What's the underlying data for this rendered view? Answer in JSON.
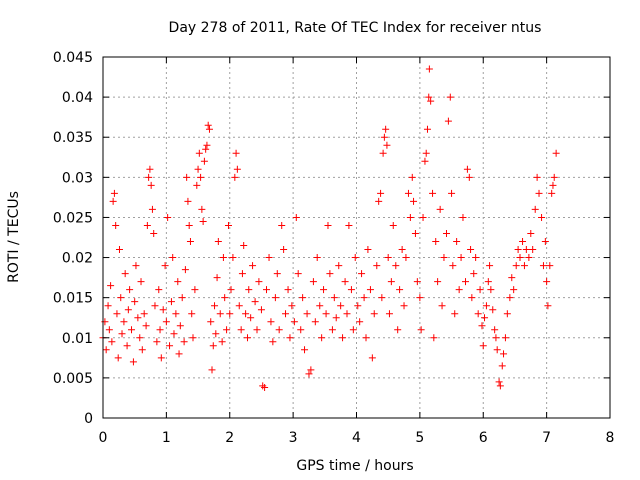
{
  "chart_data": {
    "type": "scatter",
    "title": "Day 278 of 2011, Rate Of TEC Index for receiver ntus",
    "xlabel": "GPS time / hours",
    "ylabel": "ROTI / TECUs",
    "xlim": [
      0,
      8
    ],
    "ylim": [
      0,
      0.045
    ],
    "xticks": [
      "0",
      "1",
      "2",
      "3",
      "4",
      "5",
      "6",
      "7",
      "8"
    ],
    "yticks": [
      "0",
      "0.005",
      "0.01",
      "0.015",
      "0.02",
      "0.025",
      "0.03",
      "0.035",
      "0.04",
      "0.045"
    ],
    "grid": true,
    "marker": "+",
    "color": "#ff0000",
    "series": [
      {
        "name": "ROTI",
        "points": [
          [
            0.0,
            0.01
          ],
          [
            0.03,
            0.012
          ],
          [
            0.05,
            0.0085
          ],
          [
            0.08,
            0.014
          ],
          [
            0.1,
            0.011
          ],
          [
            0.12,
            0.0165
          ],
          [
            0.14,
            0.0095
          ],
          [
            0.16,
            0.027
          ],
          [
            0.18,
            0.028
          ],
          [
            0.2,
            0.024
          ],
          [
            0.22,
            0.013
          ],
          [
            0.24,
            0.0075
          ],
          [
            0.26,
            0.021
          ],
          [
            0.28,
            0.015
          ],
          [
            0.3,
            0.0105
          ],
          [
            0.33,
            0.012
          ],
          [
            0.35,
            0.018
          ],
          [
            0.38,
            0.009
          ],
          [
            0.4,
            0.0135
          ],
          [
            0.42,
            0.016
          ],
          [
            0.45,
            0.011
          ],
          [
            0.48,
            0.007
          ],
          [
            0.5,
            0.0145
          ],
          [
            0.52,
            0.019
          ],
          [
            0.55,
            0.0125
          ],
          [
            0.58,
            0.01
          ],
          [
            0.6,
            0.017
          ],
          [
            0.62,
            0.0085
          ],
          [
            0.65,
            0.013
          ],
          [
            0.68,
            0.0115
          ],
          [
            0.7,
            0.024
          ],
          [
            0.72,
            0.03
          ],
          [
            0.74,
            0.031
          ],
          [
            0.76,
            0.029
          ],
          [
            0.78,
            0.026
          ],
          [
            0.8,
            0.023
          ],
          [
            0.82,
            0.014
          ],
          [
            0.85,
            0.0095
          ],
          [
            0.88,
            0.016
          ],
          [
            0.9,
            0.011
          ],
          [
            0.92,
            0.0075
          ],
          [
            0.95,
            0.0135
          ],
          [
            0.98,
            0.019
          ],
          [
            1.0,
            0.012
          ],
          [
            1.02,
            0.025
          ],
          [
            1.05,
            0.009
          ],
          [
            1.08,
            0.0145
          ],
          [
            1.1,
            0.02
          ],
          [
            1.12,
            0.0105
          ],
          [
            1.15,
            0.013
          ],
          [
            1.18,
            0.017
          ],
          [
            1.2,
            0.008
          ],
          [
            1.22,
            0.0115
          ],
          [
            1.25,
            0.015
          ],
          [
            1.28,
            0.0095
          ],
          [
            1.3,
            0.0185
          ],
          [
            1.32,
            0.03
          ],
          [
            1.34,
            0.027
          ],
          [
            1.36,
            0.024
          ],
          [
            1.38,
            0.022
          ],
          [
            1.4,
            0.013
          ],
          [
            1.42,
            0.01
          ],
          [
            1.45,
            0.016
          ],
          [
            1.48,
            0.029
          ],
          [
            1.5,
            0.031
          ],
          [
            1.52,
            0.033
          ],
          [
            1.54,
            0.03
          ],
          [
            1.56,
            0.026
          ],
          [
            1.58,
            0.0245
          ],
          [
            1.6,
            0.032
          ],
          [
            1.62,
            0.0335
          ],
          [
            1.64,
            0.034
          ],
          [
            1.66,
            0.0365
          ],
          [
            1.68,
            0.036
          ],
          [
            1.7,
            0.012
          ],
          [
            1.72,
            0.006
          ],
          [
            1.74,
            0.009
          ],
          [
            1.76,
            0.014
          ],
          [
            1.78,
            0.0105
          ],
          [
            1.8,
            0.0175
          ],
          [
            1.82,
            0.022
          ],
          [
            1.85,
            0.013
          ],
          [
            1.88,
            0.0095
          ],
          [
            1.9,
            0.02
          ],
          [
            1.92,
            0.015
          ],
          [
            1.95,
            0.011
          ],
          [
            1.98,
            0.024
          ],
          [
            2.0,
            0.013
          ],
          [
            2.02,
            0.016
          ],
          [
            2.05,
            0.02
          ],
          [
            2.08,
            0.03
          ],
          [
            2.1,
            0.033
          ],
          [
            2.12,
            0.031
          ],
          [
            2.15,
            0.014
          ],
          [
            2.18,
            0.011
          ],
          [
            2.2,
            0.018
          ],
          [
            2.22,
            0.0215
          ],
          [
            2.25,
            0.013
          ],
          [
            2.28,
            0.01
          ],
          [
            2.3,
            0.016
          ],
          [
            2.33,
            0.0125
          ],
          [
            2.36,
            0.019
          ],
          [
            2.4,
            0.0145
          ],
          [
            2.43,
            0.011
          ],
          [
            2.46,
            0.017
          ],
          [
            2.5,
            0.0135
          ],
          [
            2.52,
            0.004
          ],
          [
            2.55,
            0.0038
          ],
          [
            2.58,
            0.016
          ],
          [
            2.62,
            0.02
          ],
          [
            2.65,
            0.012
          ],
          [
            2.68,
            0.0095
          ],
          [
            2.72,
            0.015
          ],
          [
            2.75,
            0.018
          ],
          [
            2.78,
            0.011
          ],
          [
            2.82,
            0.024
          ],
          [
            2.85,
            0.021
          ],
          [
            2.88,
            0.013
          ],
          [
            2.92,
            0.016
          ],
          [
            2.95,
            0.01
          ],
          [
            2.98,
            0.014
          ],
          [
            3.02,
            0.012
          ],
          [
            3.05,
            0.025
          ],
          [
            3.08,
            0.018
          ],
          [
            3.12,
            0.011
          ],
          [
            3.15,
            0.015
          ],
          [
            3.18,
            0.0085
          ],
          [
            3.22,
            0.013
          ],
          [
            3.25,
            0.0055
          ],
          [
            3.28,
            0.006
          ],
          [
            3.32,
            0.017
          ],
          [
            3.35,
            0.012
          ],
          [
            3.38,
            0.02
          ],
          [
            3.42,
            0.014
          ],
          [
            3.45,
            0.01
          ],
          [
            3.48,
            0.016
          ],
          [
            3.52,
            0.013
          ],
          [
            3.55,
            0.024
          ],
          [
            3.58,
            0.018
          ],
          [
            3.62,
            0.011
          ],
          [
            3.65,
            0.015
          ],
          [
            3.68,
            0.0125
          ],
          [
            3.72,
            0.019
          ],
          [
            3.75,
            0.014
          ],
          [
            3.78,
            0.01
          ],
          [
            3.82,
            0.017
          ],
          [
            3.85,
            0.013
          ],
          [
            3.88,
            0.024
          ],
          [
            3.92,
            0.016
          ],
          [
            3.95,
            0.011
          ],
          [
            3.98,
            0.02
          ],
          [
            4.02,
            0.014
          ],
          [
            4.05,
            0.012
          ],
          [
            4.08,
            0.018
          ],
          [
            4.12,
            0.015
          ],
          [
            4.15,
            0.01
          ],
          [
            4.18,
            0.021
          ],
          [
            4.22,
            0.016
          ],
          [
            4.25,
            0.0075
          ],
          [
            4.28,
            0.013
          ],
          [
            4.32,
            0.019
          ],
          [
            4.35,
            0.027
          ],
          [
            4.38,
            0.028
          ],
          [
            4.4,
            0.015
          ],
          [
            4.42,
            0.033
          ],
          [
            4.44,
            0.035
          ],
          [
            4.46,
            0.036
          ],
          [
            4.48,
            0.034
          ],
          [
            4.5,
            0.02
          ],
          [
            4.52,
            0.013
          ],
          [
            4.55,
            0.017
          ],
          [
            4.58,
            0.024
          ],
          [
            4.62,
            0.019
          ],
          [
            4.65,
            0.011
          ],
          [
            4.68,
            0.016
          ],
          [
            4.72,
            0.021
          ],
          [
            4.75,
            0.014
          ],
          [
            4.78,
            0.02
          ],
          [
            4.82,
            0.028
          ],
          [
            4.85,
            0.025
          ],
          [
            4.88,
            0.03
          ],
          [
            4.9,
            0.027
          ],
          [
            4.93,
            0.023
          ],
          [
            4.96,
            0.017
          ],
          [
            5.0,
            0.015
          ],
          [
            5.02,
            0.011
          ],
          [
            5.05,
            0.025
          ],
          [
            5.08,
            0.032
          ],
          [
            5.1,
            0.033
          ],
          [
            5.12,
            0.036
          ],
          [
            5.14,
            0.04
          ],
          [
            5.15,
            0.0435
          ],
          [
            5.17,
            0.0395
          ],
          [
            5.2,
            0.028
          ],
          [
            5.22,
            0.01
          ],
          [
            5.25,
            0.022
          ],
          [
            5.28,
            0.017
          ],
          [
            5.32,
            0.026
          ],
          [
            5.35,
            0.014
          ],
          [
            5.38,
            0.02
          ],
          [
            5.42,
            0.023
          ],
          [
            5.45,
            0.037
          ],
          [
            5.48,
            0.04
          ],
          [
            5.5,
            0.028
          ],
          [
            5.52,
            0.019
          ],
          [
            5.55,
            0.013
          ],
          [
            5.58,
            0.022
          ],
          [
            5.62,
            0.016
          ],
          [
            5.65,
            0.02
          ],
          [
            5.68,
            0.025
          ],
          [
            5.72,
            0.017
          ],
          [
            5.75,
            0.031
          ],
          [
            5.78,
            0.03
          ],
          [
            5.8,
            0.021
          ],
          [
            5.82,
            0.015
          ],
          [
            5.85,
            0.018
          ],
          [
            5.88,
            0.02
          ],
          [
            5.92,
            0.013
          ],
          [
            5.95,
            0.016
          ],
          [
            5.98,
            0.0115
          ],
          [
            6.0,
            0.009
          ],
          [
            6.02,
            0.0125
          ],
          [
            6.05,
            0.014
          ],
          [
            6.08,
            0.017
          ],
          [
            6.1,
            0.019
          ],
          [
            6.12,
            0.016
          ],
          [
            6.15,
            0.0135
          ],
          [
            6.18,
            0.011
          ],
          [
            6.2,
            0.01
          ],
          [
            6.22,
            0.0085
          ],
          [
            6.25,
            0.0045
          ],
          [
            6.27,
            0.004
          ],
          [
            6.3,
            0.0065
          ],
          [
            6.32,
            0.008
          ],
          [
            6.35,
            0.01
          ],
          [
            6.38,
            0.013
          ],
          [
            6.42,
            0.015
          ],
          [
            6.45,
            0.0175
          ],
          [
            6.48,
            0.016
          ],
          [
            6.52,
            0.019
          ],
          [
            6.55,
            0.021
          ],
          [
            6.58,
            0.02
          ],
          [
            6.62,
            0.022
          ],
          [
            6.65,
            0.019
          ],
          [
            6.68,
            0.021
          ],
          [
            6.72,
            0.02
          ],
          [
            6.75,
            0.023
          ],
          [
            6.78,
            0.021
          ],
          [
            6.82,
            0.026
          ],
          [
            6.85,
            0.03
          ],
          [
            6.88,
            0.028
          ],
          [
            6.92,
            0.025
          ],
          [
            6.95,
            0.019
          ],
          [
            6.98,
            0.022
          ],
          [
            7.0,
            0.017
          ],
          [
            7.02,
            0.014
          ],
          [
            7.05,
            0.019
          ],
          [
            7.08,
            0.028
          ],
          [
            7.1,
            0.029
          ],
          [
            7.12,
            0.03
          ],
          [
            7.15,
            0.033
          ]
        ]
      }
    ]
  }
}
